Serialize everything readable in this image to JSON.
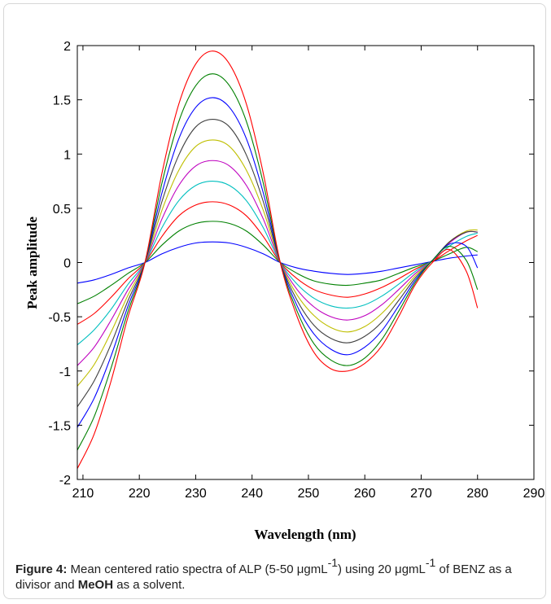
{
  "chart_data": {
    "type": "line",
    "title": "",
    "xlabel": "Wavelength (nm)",
    "ylabel": "Peak amplitude",
    "xlim": [
      209,
      290
    ],
    "ylim": [
      -2,
      2
    ],
    "xticks": [
      "210",
      "220",
      "230",
      "240",
      "250",
      "260",
      "270",
      "280",
      "290"
    ],
    "yticks": [
      "2",
      "1.5",
      "1",
      "0.5",
      "0",
      "-0.5",
      "-1",
      "-1.5",
      "-2"
    ],
    "grid": false,
    "legend": "none",
    "x": [
      209,
      212,
      215,
      218,
      221,
      224,
      227,
      230,
      233,
      236,
      239,
      242,
      245,
      248,
      251,
      254,
      257,
      260,
      263,
      266,
      269,
      272,
      275,
      278,
      280
    ],
    "series": [
      {
        "color": "#0000ff",
        "values": [
          -0.19,
          -0.16,
          -0.11,
          -0.05,
          0.0,
          0.08,
          0.14,
          0.18,
          0.19,
          0.18,
          0.14,
          0.08,
          0.0,
          -0.05,
          -0.08,
          -0.1,
          -0.11,
          -0.1,
          -0.08,
          -0.05,
          -0.02,
          0.01,
          0.04,
          0.06,
          0.07
        ]
      },
      {
        "color": "#008000",
        "values": [
          -0.38,
          -0.31,
          -0.21,
          -0.1,
          0.0,
          0.16,
          0.29,
          0.36,
          0.38,
          0.36,
          0.29,
          0.16,
          0.0,
          -0.1,
          -0.17,
          -0.2,
          -0.21,
          -0.19,
          -0.16,
          -0.1,
          -0.04,
          0.01,
          0.08,
          0.14,
          0.1
        ]
      },
      {
        "color": "#ff0000",
        "values": [
          -0.57,
          -0.47,
          -0.32,
          -0.15,
          0.0,
          0.24,
          0.43,
          0.53,
          0.56,
          0.53,
          0.43,
          0.24,
          0.0,
          -0.15,
          -0.25,
          -0.3,
          -0.32,
          -0.29,
          -0.23,
          -0.15,
          -0.06,
          0.01,
          0.11,
          0.2,
          0.25
        ]
      },
      {
        "color": "#00bfbf",
        "values": [
          -0.76,
          -0.62,
          -0.43,
          -0.2,
          0.0,
          0.32,
          0.57,
          0.71,
          0.75,
          0.71,
          0.57,
          0.32,
          0.0,
          -0.2,
          -0.33,
          -0.4,
          -0.42,
          -0.39,
          -0.31,
          -0.2,
          -0.08,
          0.02,
          0.15,
          0.24,
          0.27
        ]
      },
      {
        "color": "#bf00bf",
        "values": [
          -0.95,
          -0.78,
          -0.53,
          -0.25,
          0.0,
          0.4,
          0.71,
          0.89,
          0.94,
          0.89,
          0.71,
          0.4,
          0.0,
          -0.25,
          -0.41,
          -0.5,
          -0.53,
          -0.49,
          -0.39,
          -0.25,
          -0.1,
          0.02,
          0.18,
          0.28,
          0.28
        ]
      },
      {
        "color": "#bfbf00",
        "values": [
          -1.14,
          -0.94,
          -0.64,
          -0.3,
          0.0,
          0.48,
          0.85,
          1.07,
          1.13,
          1.07,
          0.85,
          0.48,
          0.0,
          -0.3,
          -0.49,
          -0.6,
          -0.64,
          -0.59,
          -0.47,
          -0.3,
          -0.12,
          0.02,
          0.19,
          0.29,
          0.3
        ]
      },
      {
        "color": "#404040",
        "values": [
          -1.33,
          -1.09,
          -0.75,
          -0.35,
          0.0,
          0.56,
          0.99,
          1.25,
          1.32,
          1.25,
          0.99,
          0.56,
          0.0,
          -0.35,
          -0.58,
          -0.7,
          -0.74,
          -0.68,
          -0.55,
          -0.35,
          -0.14,
          0.02,
          0.19,
          0.28,
          0.28
        ]
      },
      {
        "color": "#0000ff",
        "values": [
          -1.52,
          -1.25,
          -0.86,
          -0.4,
          0.0,
          0.64,
          1.14,
          1.43,
          1.52,
          1.43,
          1.14,
          0.64,
          0.0,
          -0.4,
          -0.66,
          -0.8,
          -0.85,
          -0.78,
          -0.63,
          -0.4,
          -0.16,
          0.02,
          0.17,
          0.15,
          -0.05
        ]
      },
      {
        "color": "#008000",
        "values": [
          -1.73,
          -1.42,
          -0.97,
          -0.45,
          0.0,
          0.73,
          1.3,
          1.63,
          1.74,
          1.63,
          1.3,
          0.73,
          0.0,
          -0.45,
          -0.75,
          -0.9,
          -0.95,
          -0.88,
          -0.71,
          -0.45,
          -0.18,
          0.02,
          0.15,
          0.02,
          -0.25
        ]
      },
      {
        "color": "#ff0000",
        "values": [
          -1.9,
          -1.58,
          -1.09,
          -0.5,
          0.0,
          0.82,
          1.46,
          1.83,
          1.95,
          1.83,
          1.46,
          0.82,
          0.0,
          -0.5,
          -0.83,
          -0.98,
          -1.0,
          -0.93,
          -0.77,
          -0.5,
          -0.2,
          0.0,
          0.12,
          -0.08,
          -0.42
        ]
      }
    ]
  },
  "caption": {
    "label": "Figure 4:",
    "text_1": " Mean centered ratio spectra of ALP (5-50 μgmL",
    "sup_1": "-1",
    "text_2": ") using 20 μgmL",
    "sup_2": "-1",
    "text_3": " of BENZ as a divisor and ",
    "solvent": "MeOH",
    "text_4": " as a solvent."
  }
}
